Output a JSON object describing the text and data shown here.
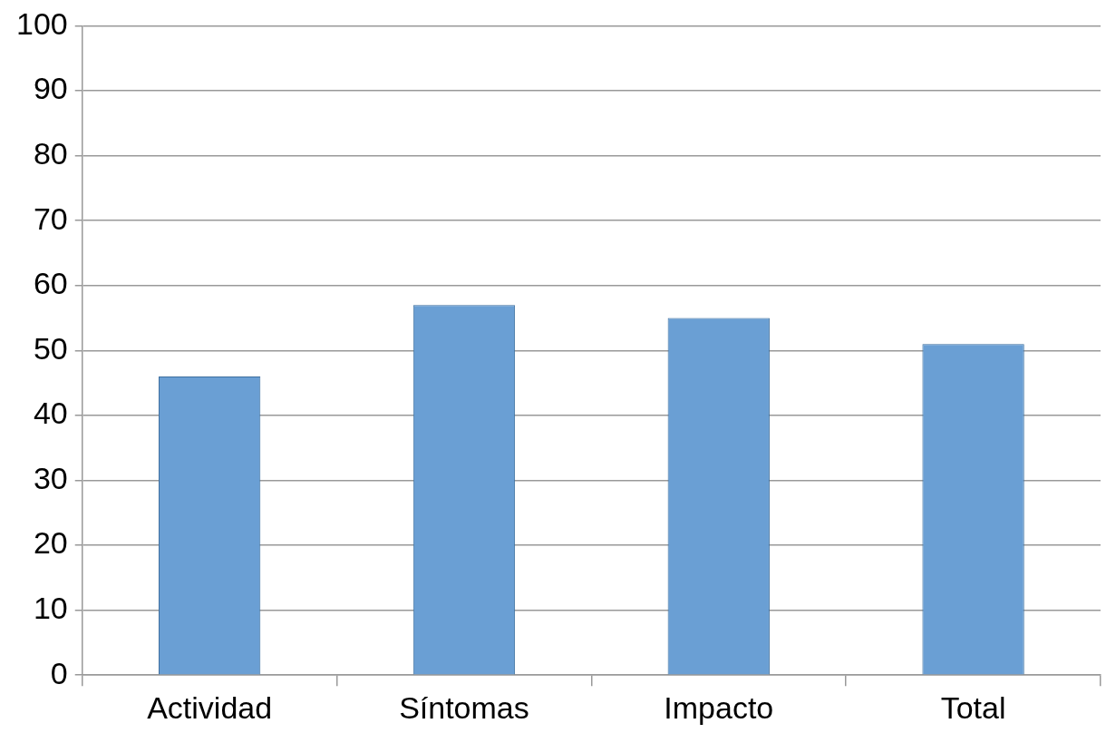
{
  "chart_data": {
    "type": "bar",
    "categories": [
      "Actividad",
      "Síntomas",
      "Impacto",
      "Total"
    ],
    "values": [
      46,
      57,
      55,
      51
    ],
    "color": "#6a9fd4",
    "ylim": [
      0,
      100
    ],
    "yticks": [
      0,
      10,
      20,
      30,
      40,
      50,
      60,
      70,
      80,
      90,
      100
    ],
    "grid": "y"
  }
}
